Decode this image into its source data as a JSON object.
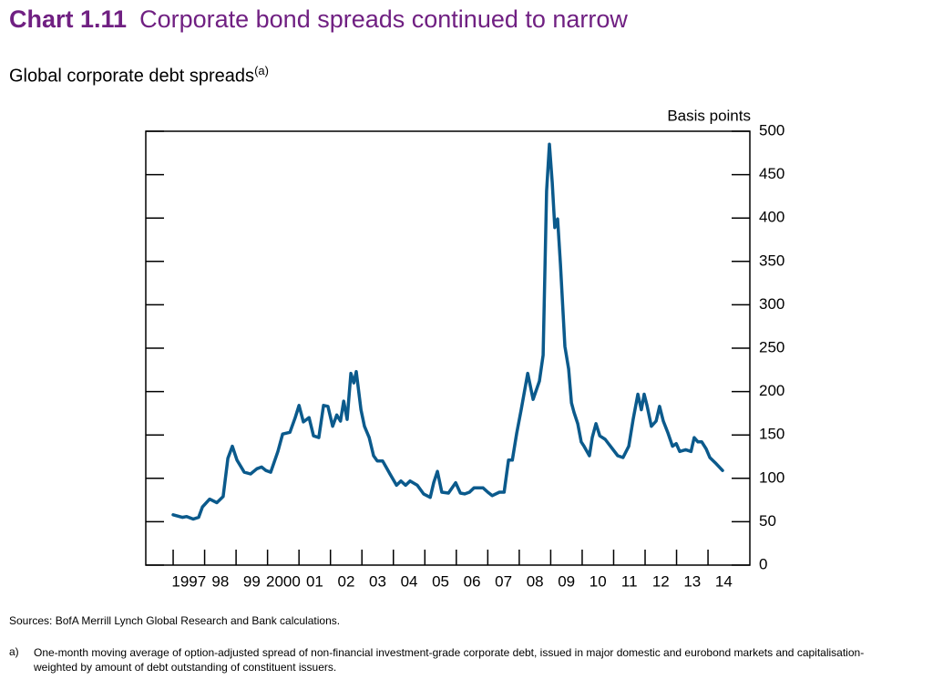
{
  "chart_data": {
    "type": "line",
    "chart_number": "Chart 1.11",
    "title": "Corporate bond spreads continued to narrow",
    "subtitle": "Global corporate debt spreads",
    "subtitle_note": "(a)",
    "y_label": "Basis points",
    "color": "#0b5a8c",
    "xlim": [
      1996.13,
      2015.33
    ],
    "xticks": [
      1997,
      {
        "value": 1998,
        "label": "98"
      },
      {
        "value": 1999,
        "label": "99"
      },
      2000,
      {
        "value": 2001,
        "label": "01"
      },
      {
        "value": 2002,
        "label": "02"
      },
      {
        "value": 2003,
        "label": "03"
      },
      {
        "value": 2004,
        "label": "04"
      },
      {
        "value": 2005,
        "label": "05"
      },
      {
        "value": 2006,
        "label": "06"
      },
      {
        "value": 2007,
        "label": "07"
      },
      {
        "value": 2008,
        "label": "08"
      },
      {
        "value": 2009,
        "label": "09"
      },
      {
        "value": 2010,
        "label": "10"
      },
      {
        "value": 2011,
        "label": "11"
      },
      {
        "value": 2012,
        "label": "12"
      },
      {
        "value": 2013,
        "label": "13"
      },
      {
        "value": 2014,
        "label": "14"
      }
    ],
    "ylim": [
      0,
      500
    ],
    "yticks": [
      0,
      50,
      100,
      150,
      200,
      250,
      300,
      350,
      400,
      450,
      500
    ],
    "x": [
      1997.0,
      1997.29,
      1997.43,
      1997.64,
      1997.81,
      1997.93,
      1998.16,
      1998.39,
      1998.59,
      1998.74,
      1998.88,
      1999.03,
      1999.26,
      1999.46,
      1999.66,
      1999.81,
      1999.95,
      2000.1,
      2000.33,
      2000.48,
      2000.71,
      2000.88,
      2001.0,
      2001.14,
      2001.32,
      2001.46,
      2001.63,
      2001.78,
      2001.92,
      2002.07,
      2002.2,
      2002.32,
      2002.42,
      2002.53,
      2002.65,
      2002.74,
      2002.82,
      2002.97,
      2003.08,
      2003.23,
      2003.37,
      2003.49,
      2003.66,
      2003.89,
      2004.1,
      2004.24,
      2004.39,
      2004.53,
      2004.76,
      2004.96,
      2005.17,
      2005.28,
      2005.4,
      2005.54,
      2005.75,
      2005.98,
      2006.13,
      2006.27,
      2006.42,
      2006.56,
      2006.85,
      2007.0,
      2007.14,
      2007.37,
      2007.52,
      2007.66,
      2007.78,
      2007.92,
      2008.06,
      2008.27,
      2008.44,
      2008.64,
      2008.76,
      2008.87,
      2008.96,
      2009.05,
      2009.13,
      2009.22,
      2009.31,
      2009.45,
      2009.57,
      2009.66,
      2009.74,
      2009.86,
      2009.97,
      2010.06,
      2010.23,
      2010.32,
      2010.44,
      2010.56,
      2010.73,
      2010.9,
      2011.13,
      2011.3,
      2011.48,
      2011.62,
      2011.77,
      2011.88,
      2011.97,
      2012.06,
      2012.2,
      2012.35,
      2012.46,
      2012.58,
      2012.73,
      2012.87,
      2012.99,
      2013.1,
      2013.29,
      2013.46,
      2013.56,
      2013.68,
      2013.8,
      2013.94,
      2014.06,
      2014.23,
      2014.46
    ],
    "values": [
      58,
      55,
      56,
      53,
      55,
      67,
      76,
      72,
      79,
      123,
      137,
      121,
      107,
      105,
      111,
      113,
      109,
      107,
      131,
      151,
      153,
      170,
      184,
      165,
      170,
      149,
      147,
      184,
      183,
      160,
      173,
      166,
      189,
      168,
      221,
      210,
      223,
      179,
      160,
      147,
      126,
      120,
      120,
      105,
      92,
      97,
      92,
      97,
      92,
      82,
      78,
      95,
      108,
      84,
      83,
      95,
      83,
      82,
      84,
      89,
      89,
      84,
      80,
      84,
      84,
      121,
      121,
      152,
      179,
      221,
      191,
      212,
      242,
      431,
      485,
      441,
      389,
      399,
      347,
      252,
      226,
      187,
      176,
      163,
      142,
      137,
      126,
      147,
      163,
      149,
      145,
      137,
      126,
      124,
      137,
      168,
      197,
      179,
      197,
      184,
      160,
      166,
      183,
      166,
      152,
      137,
      140,
      131,
      133,
      131,
      147,
      142,
      142,
      134,
      124,
      118,
      109
    ],
    "sources": "Sources:  BofA Merrill Lynch Global Research and Bank calculations.",
    "notes": [
      {
        "marker": "a)",
        "text": "One-month moving average of option-adjusted spread of non-financial investment-grade corporate debt, issued in major domestic and eurobond markets and capitalisation-weighted by amount of debt outstanding of constituent issuers."
      }
    ]
  }
}
